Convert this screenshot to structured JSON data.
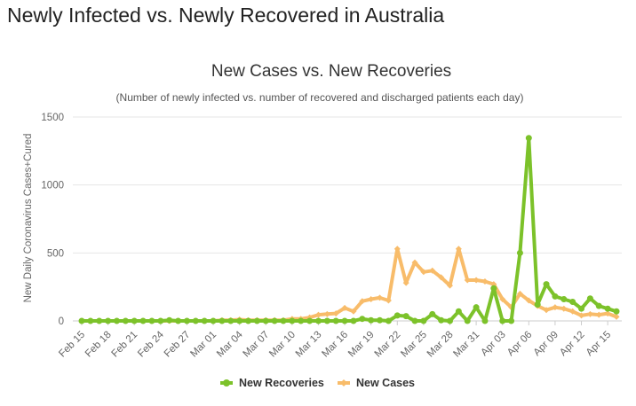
{
  "page": {
    "heading": "Newly Infected vs. Newly Recovered in Australia"
  },
  "chart_data": {
    "type": "line",
    "title": "New Cases vs. New Recoveries",
    "subtitle": "(Number of newly infected vs. number of recovered and discharged patients each day)",
    "ylabel": "New Daily Coronavirus Cases+Cured",
    "xlabel": "",
    "ylim": [
      0,
      1500
    ],
    "yticks": [
      0,
      500,
      1000,
      1500
    ],
    "grid": "horizontal",
    "legend": "bottom-center",
    "x": [
      "Feb 15",
      "Feb 16",
      "Feb 17",
      "Feb 18",
      "Feb 19",
      "Feb 20",
      "Feb 21",
      "Feb 22",
      "Feb 23",
      "Feb 24",
      "Feb 25",
      "Feb 26",
      "Feb 27",
      "Feb 28",
      "Feb 29",
      "Mar 01",
      "Mar 02",
      "Mar 03",
      "Mar 04",
      "Mar 05",
      "Mar 06",
      "Mar 07",
      "Mar 08",
      "Mar 09",
      "Mar 10",
      "Mar 11",
      "Mar 12",
      "Mar 13",
      "Mar 14",
      "Mar 15",
      "Mar 16",
      "Mar 17",
      "Mar 18",
      "Mar 19",
      "Mar 20",
      "Mar 21",
      "Mar 22",
      "Mar 23",
      "Mar 24",
      "Mar 25",
      "Mar 26",
      "Mar 27",
      "Mar 28",
      "Mar 29",
      "Mar 30",
      "Mar 31",
      "Apr 01",
      "Apr 02",
      "Apr 03",
      "Apr 04",
      "Apr 05",
      "Apr 06",
      "Apr 07",
      "Apr 08",
      "Apr 09",
      "Apr 10",
      "Apr 11",
      "Apr 12",
      "Apr 13",
      "Apr 14",
      "Apr 15",
      "Apr 16"
    ],
    "tick_labels": [
      "Feb 15",
      "Feb 18",
      "Feb 21",
      "Feb 24",
      "Feb 27",
      "Mar 01",
      "Mar 04",
      "Mar 07",
      "Mar 10",
      "Mar 13",
      "Mar 16",
      "Mar 19",
      "Mar 22",
      "Mar 25",
      "Mar 28",
      "Mar 31",
      "Apr 03",
      "Apr 06",
      "Apr 09",
      "Apr 12",
      "Apr 15"
    ],
    "series": [
      {
        "name": "New Recoveries",
        "color": "#7cc22a",
        "marker": "circle",
        "values": [
          0,
          0,
          0,
          0,
          0,
          0,
          0,
          0,
          0,
          0,
          5,
          0,
          0,
          0,
          0,
          0,
          0,
          0,
          0,
          0,
          0,
          0,
          0,
          0,
          0,
          0,
          0,
          0,
          0,
          0,
          0,
          0,
          15,
          5,
          5,
          0,
          40,
          35,
          0,
          0,
          50,
          5,
          0,
          70,
          0,
          100,
          0,
          240,
          0,
          0,
          500,
          1345,
          120,
          270,
          180,
          160,
          140,
          90,
          165,
          110,
          90,
          70
        ]
      },
      {
        "name": "New Cases",
        "color": "#f8bc6a",
        "marker": "diamond",
        "values": [
          0,
          0,
          0,
          0,
          0,
          0,
          0,
          0,
          0,
          0,
          0,
          0,
          0,
          0,
          0,
          0,
          5,
          5,
          10,
          5,
          5,
          5,
          5,
          5,
          15,
          15,
          25,
          45,
          50,
          55,
          95,
          70,
          145,
          160,
          170,
          150,
          530,
          280,
          430,
          360,
          370,
          320,
          260,
          530,
          300,
          300,
          290,
          270,
          160,
          100,
          200,
          150,
          110,
          80,
          100,
          90,
          70,
          40,
          50,
          45,
          55,
          30
        ]
      }
    ]
  }
}
